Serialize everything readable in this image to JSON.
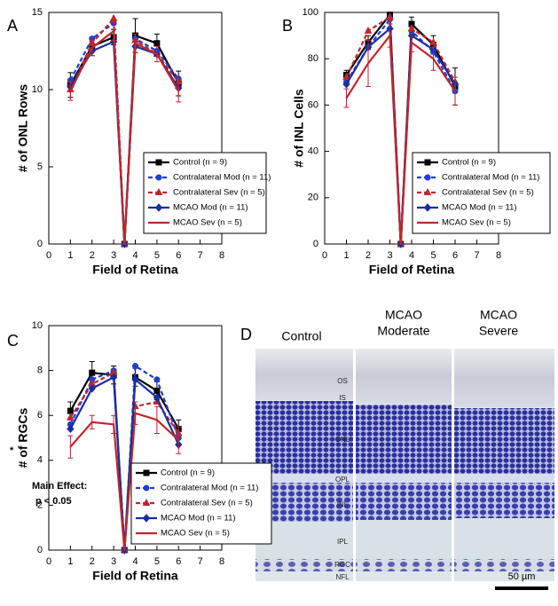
{
  "chart_data": [
    {
      "type": "line",
      "panel_label": "A",
      "xlabel": "Field of Retina",
      "ylabel": "# of ONL Rows",
      "x": [
        1,
        2,
        3,
        3.5,
        4,
        5,
        6
      ],
      "xlim": [
        0,
        8
      ],
      "xticks": [
        0,
        1,
        2,
        3,
        4,
        5,
        6,
        7,
        8
      ],
      "ylim": [
        0,
        15
      ],
      "yticks": [
        0,
        5,
        10,
        15
      ],
      "legend": "lower right",
      "series": [
        {
          "name": "Control (n = 9)",
          "color": "#000000",
          "dash": false,
          "marker": "square",
          "values": [
            10.3,
            12.8,
            13.4,
            0,
            13.5,
            13.0,
            10.4
          ],
          "errors": [
            0.8,
            0.6,
            0.5,
            0,
            1.1,
            0.6,
            0.8
          ]
        },
        {
          "name": "Contralateral Mod (n = 11)",
          "color": "#1f3fd0",
          "dash": true,
          "marker": "circle",
          "values": [
            10.6,
            13.3,
            14.3,
            0,
            13.3,
            12.5,
            10.7
          ]
        },
        {
          "name": "Contralateral Sev (n = 5)",
          "color": "#c0262d",
          "dash": true,
          "marker": "triangle",
          "values": [
            10.0,
            13.0,
            14.6,
            0,
            13.2,
            12.3,
            10.5
          ]
        },
        {
          "name": "MCAO Mod (n = 11)",
          "color": "#1a2ea0",
          "dash": false,
          "marker": "diamond",
          "values": [
            10.2,
            12.5,
            13.1,
            0,
            12.8,
            12.3,
            10.1
          ]
        },
        {
          "name": "MCAO Sev (n = 5)",
          "color": "#c0262d",
          "dash": false,
          "marker": "none",
          "values": [
            9.9,
            12.7,
            13.8,
            0,
            13.0,
            12.3,
            9.9
          ],
          "errors": [
            0.6,
            0.5,
            0.6,
            0,
            0.6,
            0.5,
            0.7
          ]
        }
      ]
    },
    {
      "type": "line",
      "panel_label": "B",
      "xlabel": "Field of Retina",
      "ylabel": "# of INL Cells",
      "x": [
        1,
        2,
        3,
        3.5,
        4,
        5,
        6
      ],
      "xlim": [
        0,
        8
      ],
      "xticks": [
        0,
        1,
        2,
        3,
        4,
        5,
        6,
        7,
        8
      ],
      "ylim": [
        0,
        100
      ],
      "yticks": [
        0,
        20,
        40,
        60,
        80,
        100
      ],
      "legend": "lower right",
      "series": [
        {
          "name": "Control (n = 9)",
          "color": "#000000",
          "dash": false,
          "marker": "square",
          "values": [
            73,
            87,
            99,
            0,
            95,
            86,
            68
          ],
          "errors": [
            2,
            3,
            1,
            0,
            3,
            4,
            8
          ]
        },
        {
          "name": "Contralateral Mod (n = 11)",
          "color": "#1f3fd0",
          "dash": true,
          "marker": "circle",
          "values": [
            70,
            85,
            97,
            0,
            92,
            83,
            66
          ]
        },
        {
          "name": "Contralateral Sev (n = 5)",
          "color": "#c0262d",
          "dash": true,
          "marker": "triangle",
          "values": [
            72,
            92,
            98,
            0,
            93,
            87,
            70
          ]
        },
        {
          "name": "MCAO Mod (n = 11)",
          "color": "#1a2ea0",
          "dash": false,
          "marker": "diamond",
          "values": [
            69,
            85,
            93,
            0,
            90,
            84,
            69
          ]
        },
        {
          "name": "MCAO Sev (n = 5)",
          "color": "#c0262d",
          "dash": false,
          "marker": "none",
          "values": [
            63,
            78,
            90,
            0,
            87,
            80,
            66
          ],
          "errors": [
            4,
            10,
            5,
            0,
            4,
            5,
            6
          ]
        }
      ]
    },
    {
      "type": "line",
      "panel_label": "C",
      "xlabel": "Field of Retina",
      "ylabel": "# of RGCs",
      "x": [
        1,
        2,
        3,
        3.5,
        4,
        5,
        6
      ],
      "xlim": [
        0,
        8
      ],
      "xticks": [
        0,
        1,
        2,
        3,
        4,
        5,
        6,
        7,
        8
      ],
      "ylim": [
        0,
        10
      ],
      "yticks": [
        0,
        2,
        4,
        6,
        8,
        10
      ],
      "legend": "lower right",
      "annotations": [
        "*",
        "Main Effect:",
        "p < 0.05"
      ],
      "series": [
        {
          "name": "Control (n = 9)",
          "color": "#000000",
          "dash": false,
          "marker": "square",
          "values": [
            6.2,
            7.9,
            7.8,
            0,
            7.7,
            7.1,
            5.4
          ],
          "errors": [
            0.4,
            0.5,
            0.4,
            0,
            0.4,
            0.4,
            0.4
          ]
        },
        {
          "name": "Contralateral Mod (n = 11)",
          "color": "#1f3fd0",
          "dash": true,
          "marker": "circle",
          "values": [
            5.6,
            7.6,
            8.0,
            0,
            8.2,
            7.6,
            5.0
          ]
        },
        {
          "name": "Contralateral Sev (n = 5)",
          "color": "#c0262d",
          "dash": true,
          "marker": "triangle",
          "values": [
            5.9,
            7.4,
            7.9,
            0,
            6.4,
            6.6,
            5.2
          ]
        },
        {
          "name": "MCAO Mod (n = 11)",
          "color": "#1a2ea0",
          "dash": false,
          "marker": "diamond",
          "values": [
            5.4,
            7.2,
            7.7,
            0,
            7.6,
            6.8,
            4.7
          ]
        },
        {
          "name": "MCAO Sev (n = 5)",
          "color": "#c0262d",
          "dash": false,
          "marker": "none",
          "values": [
            4.6,
            5.7,
            5.6,
            0,
            6.1,
            5.8,
            4.9
          ],
          "errors": [
            0.5,
            0.3,
            0.4,
            0,
            0.5,
            0.6,
            0.6
          ]
        }
      ]
    }
  ],
  "image_panel": {
    "panel_label": "D",
    "columns": [
      [
        "Control"
      ],
      [
        "MCAO",
        "Moderate"
      ],
      [
        "MCAO",
        "Severe"
      ]
    ],
    "layers": [
      "OS",
      "IS",
      "ONL",
      "OPL",
      "INL",
      "IPL",
      "RGC",
      "NFL"
    ],
    "scale_bar": "50 µm"
  }
}
